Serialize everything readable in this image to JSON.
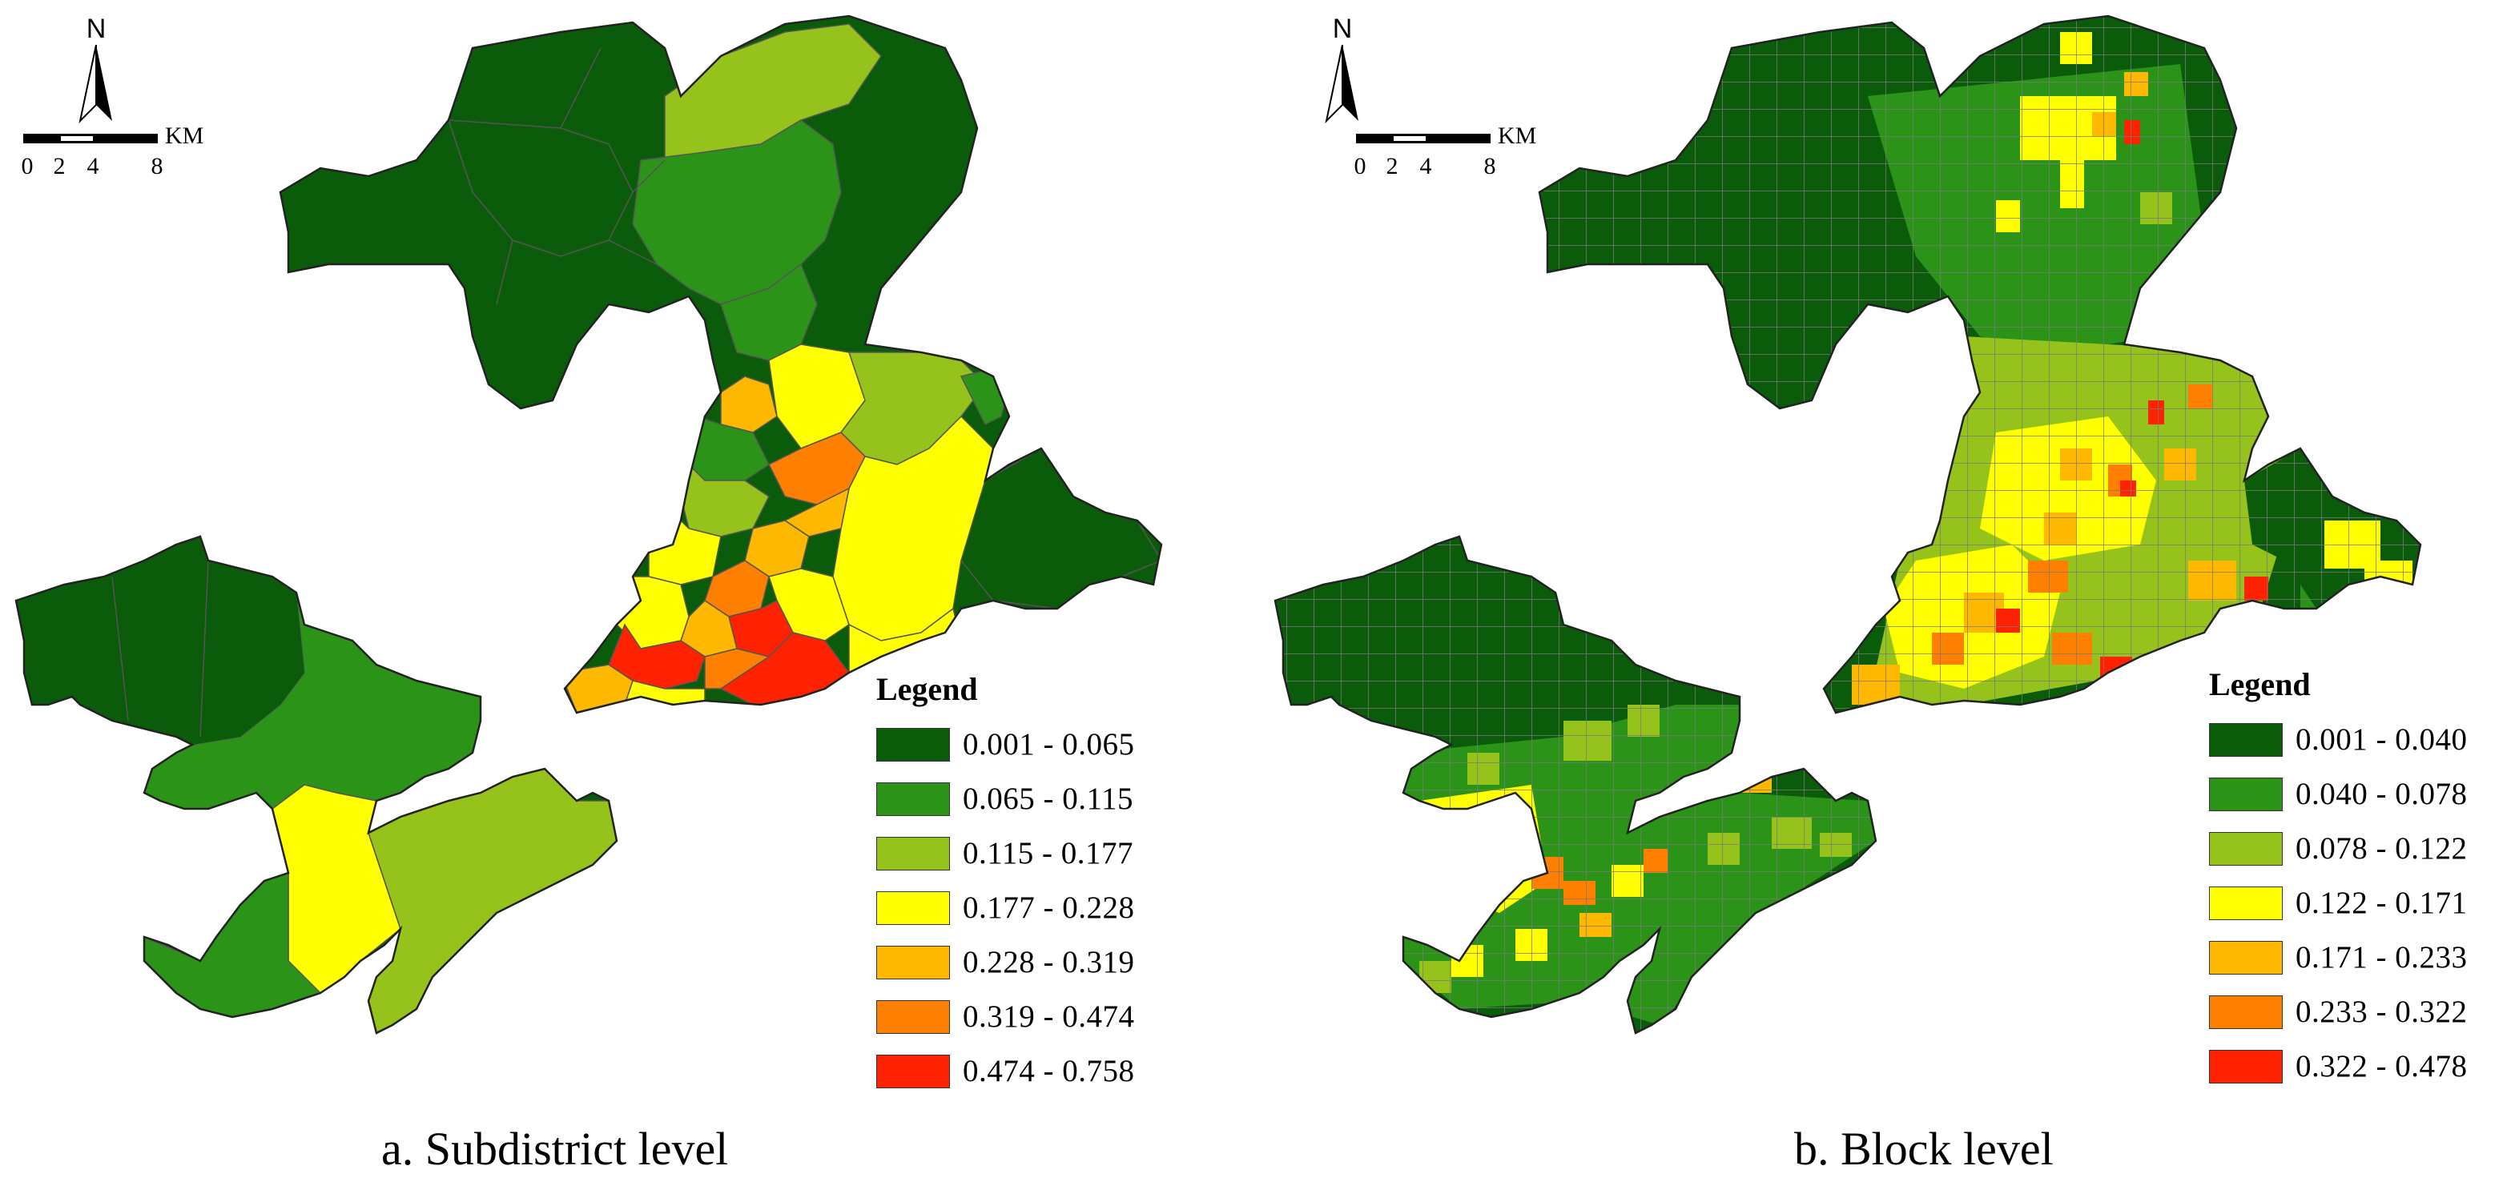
{
  "compass": {
    "label": "N"
  },
  "scale": {
    "unit": "KM",
    "ticks": [
      "0",
      "2",
      "4",
      "8"
    ]
  },
  "colors": {
    "class1": "#0a5c0a",
    "class2": "#2b9418",
    "class3": "#95c21b",
    "class4": "#ffff00",
    "class5": "#ffb800",
    "class6": "#ff7f00",
    "class7": "#ff2200",
    "boundary": "#555555"
  },
  "panels": [
    {
      "caption": "a. Subdistrict level",
      "legend": {
        "title": "Legend",
        "items": [
          {
            "label": "0.001 - 0.065",
            "color": "#0a5c0a"
          },
          {
            "label": "0.065 - 0.115",
            "color": "#2b9418"
          },
          {
            "label": "0.115 - 0.177",
            "color": "#95c21b"
          },
          {
            "label": "0.177 - 0.228",
            "color": "#ffff00"
          },
          {
            "label": "0.228 - 0.319",
            "color": "#ffb800"
          },
          {
            "label": "0.319 - 0.474",
            "color": "#ff7f00"
          },
          {
            "label": "0.474 - 0.758",
            "color": "#ff2200"
          }
        ]
      }
    },
    {
      "caption": "b. Block level",
      "legend": {
        "title": "Legend",
        "items": [
          {
            "label": "0.001 - 0.040",
            "color": "#0a5c0a"
          },
          {
            "label": "0.040 - 0.078",
            "color": "#2b9418"
          },
          {
            "label": "0.078 - 0.122",
            "color": "#95c21b"
          },
          {
            "label": "0.122 - 0.171",
            "color": "#ffff00"
          },
          {
            "label": "0.171 - 0.233",
            "color": "#ffb800"
          },
          {
            "label": "0.233 - 0.322",
            "color": "#ff7f00"
          },
          {
            "label": "0.322 - 0.478",
            "color": "#ff2200"
          }
        ]
      }
    }
  ]
}
